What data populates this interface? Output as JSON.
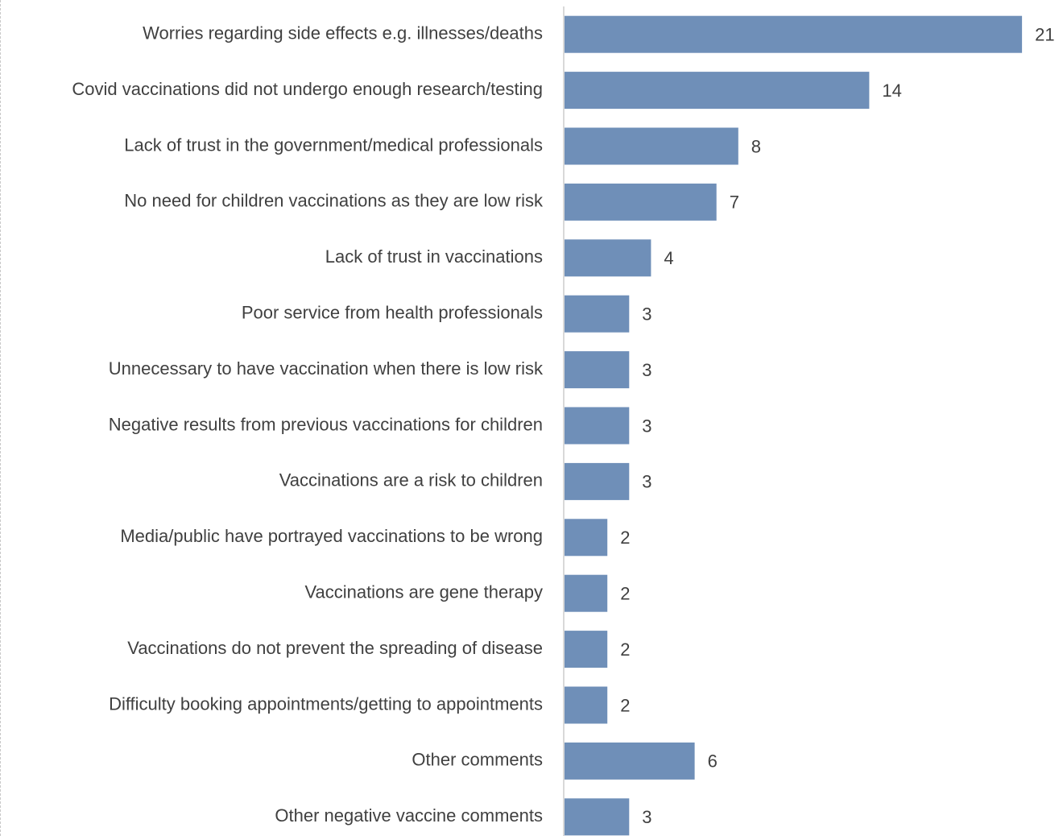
{
  "chart_data": {
    "type": "bar",
    "orientation": "horizontal",
    "categories": [
      "Worries regarding side effects e.g. illnesses/deaths",
      "Covid vaccinations did not undergo enough research/testing",
      "Lack of trust in the government/medical professionals",
      "No need for children vaccinations as they are low risk",
      "Lack of trust in vaccinations",
      "Poor service from health professionals",
      "Unnecessary to have vaccination when there is low risk",
      "Negative results from previous vaccinations for children",
      "Vaccinations are a risk to children",
      "Media/public have portrayed vaccinations to be wrong",
      "Vaccinations are gene therapy",
      "Vaccinations do not prevent the spreading of disease",
      "Difficulty booking appointments/getting to appointments",
      "Other comments",
      "Other negative vaccine comments"
    ],
    "values": [
      21,
      14,
      8,
      7,
      4,
      3,
      3,
      3,
      3,
      2,
      2,
      2,
      2,
      6,
      3
    ],
    "title": "",
    "xlabel": "",
    "ylabel": "",
    "xlim": [
      0,
      21
    ],
    "grid": false,
    "data_labels": true,
    "bar_color": "#6f8fb8"
  }
}
